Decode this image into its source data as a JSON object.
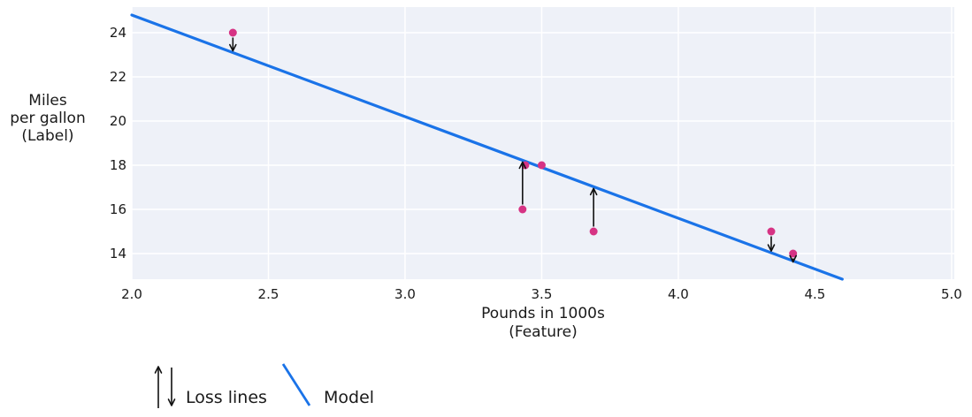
{
  "chart_data": {
    "type": "scatter",
    "title": "",
    "xlabel_lines": [
      "Pounds in 1000s",
      "(Feature)"
    ],
    "ylabel_lines": [
      "Miles",
      "per gallon",
      "(Label)"
    ],
    "x_ticks": [
      "2.0",
      "2.5",
      "3.0",
      "3.5",
      "4.0",
      "4.5",
      "5.0"
    ],
    "x_tick_values": [
      2.0,
      2.5,
      3.0,
      3.5,
      4.0,
      4.5,
      5.0
    ],
    "y_ticks": [
      "14",
      "16",
      "18",
      "20",
      "22",
      "24"
    ],
    "y_tick_values": [
      14,
      16,
      18,
      20,
      22,
      24
    ],
    "xlim": [
      2.0,
      5.01
    ],
    "ylim": [
      12.84,
      25.16
    ],
    "grid": true,
    "legend_position": "bottom-left",
    "points": [
      {
        "x": 2.37,
        "y": 24,
        "loss_arrow": "down"
      },
      {
        "x": 3.44,
        "y": 18,
        "loss_arrow": "none"
      },
      {
        "x": 3.5,
        "y": 18,
        "loss_arrow": "none"
      },
      {
        "x": 3.43,
        "y": 16,
        "loss_arrow": "up"
      },
      {
        "x": 3.69,
        "y": 15,
        "loss_arrow": "up"
      },
      {
        "x": 4.34,
        "y": 15,
        "loss_arrow": "down"
      },
      {
        "x": 4.42,
        "y": 14,
        "loss_arrow": "down"
      }
    ],
    "model_line": {
      "slope": -4.6,
      "intercept": 34,
      "x_start": 2.0
    },
    "colors": {
      "model": "#1a73e8",
      "point": "#d63384",
      "plot_bg": "#eef1f8",
      "grid": "#ffffff",
      "text": "#1a1a1a",
      "arrow": "#111111"
    }
  },
  "legend": {
    "loss_label": "Loss lines",
    "model_label": "Model"
  }
}
